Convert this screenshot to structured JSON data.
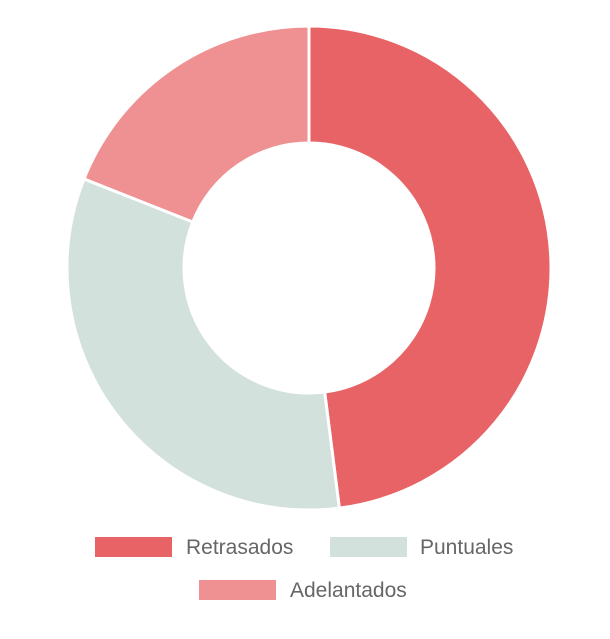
{
  "chart_data": {
    "type": "pie",
    "variant": "doughnut",
    "title": "",
    "categories": [
      "Retrasados",
      "Puntuales",
      "Adelantados"
    ],
    "values": [
      48,
      33,
      19
    ],
    "colors": [
      "#e86366",
      "#d3e1dc",
      "#ef9192"
    ],
    "legend": {
      "position": "bottom",
      "entries": [
        "Retrasados",
        "Puntuales",
        "Adelantados"
      ]
    }
  }
}
